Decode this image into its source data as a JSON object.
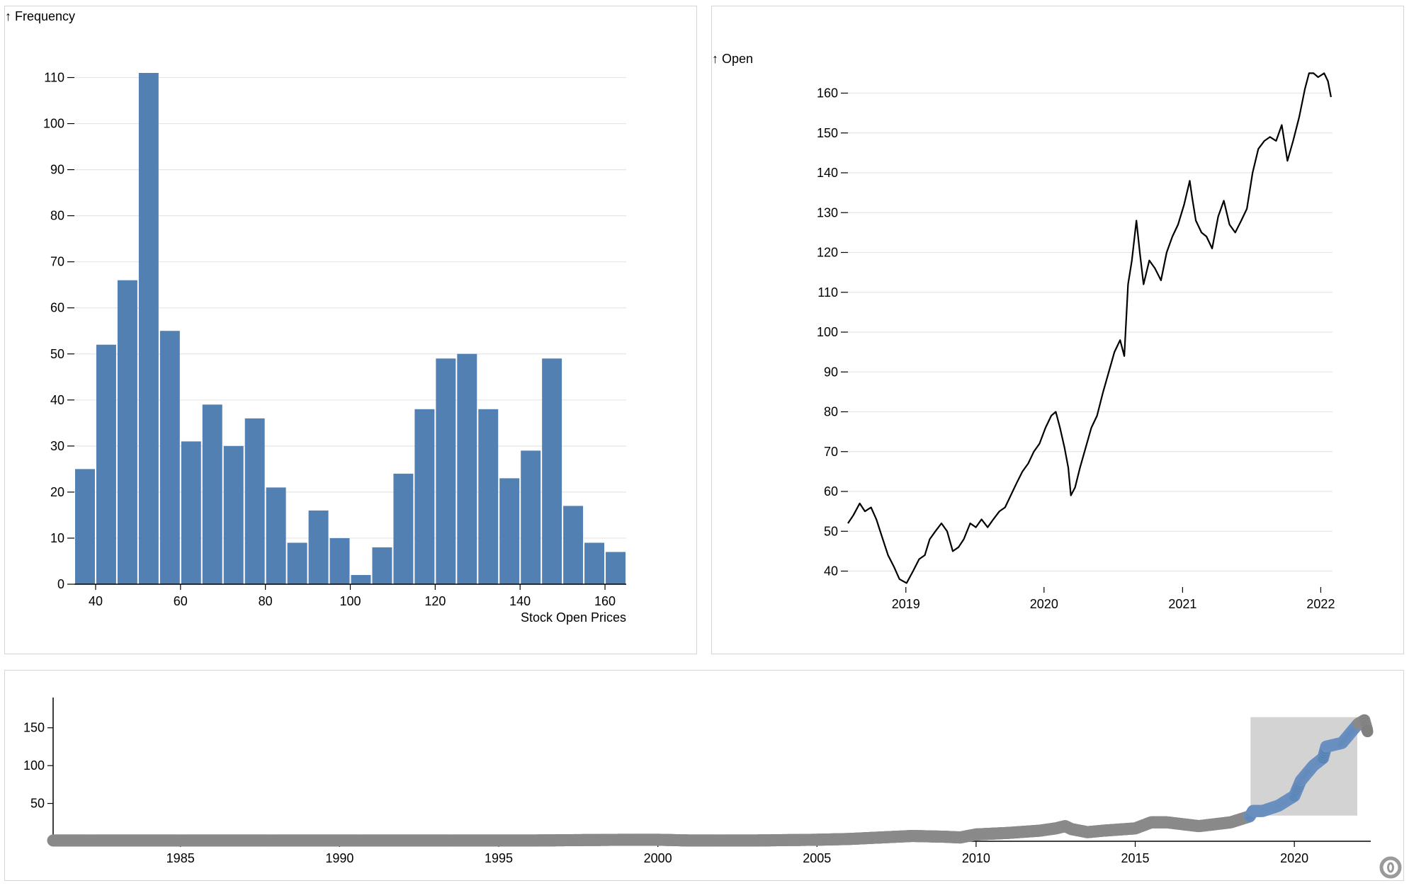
{
  "colors": {
    "bar": "#5380b2",
    "line": "#000000",
    "overview_point": "#808080",
    "overview_selected_point": "#5380b2",
    "brush": "#d3d3d3",
    "gridline": "#e6e6e6"
  },
  "chart_data": [
    {
      "type": "bar",
      "ylabel": "↑ Frequency",
      "xlabel": "Stock Open Prices",
      "bin_width": 5,
      "bin_starts": [
        35,
        40,
        45,
        50,
        55,
        60,
        65,
        70,
        75,
        80,
        85,
        90,
        95,
        100,
        105,
        110,
        115,
        120,
        125,
        130,
        135,
        140,
        145,
        150,
        155,
        160
      ],
      "values": [
        25,
        52,
        66,
        111,
        55,
        31,
        39,
        30,
        36,
        21,
        9,
        16,
        10,
        2,
        8,
        24,
        38,
        49,
        50,
        38,
        23,
        29,
        49,
        17,
        9,
        7
      ],
      "x_ticks": [
        40,
        60,
        80,
        100,
        120,
        140,
        160
      ],
      "y_ticks": [
        0,
        10,
        20,
        30,
        40,
        50,
        60,
        70,
        80,
        90,
        100,
        110
      ],
      "xlim": [
        35,
        165
      ],
      "ylim": [
        0,
        111
      ],
      "grid": true
    },
    {
      "type": "line",
      "ylabel": "↑ Open",
      "x_ticks": [
        "2019",
        "2020",
        "2021",
        "2022"
      ],
      "y_ticks": [
        40,
        50,
        60,
        70,
        80,
        90,
        100,
        110,
        120,
        130,
        140,
        150,
        160
      ],
      "xlim": [
        "2018-08-01",
        "2022-02-01"
      ],
      "ylim": [
        36,
        164
      ],
      "grid": true,
      "x": [
        "2018-08-01",
        "2018-08-15",
        "2018-09-01",
        "2018-09-15",
        "2018-10-01",
        "2018-10-15",
        "2018-11-01",
        "2018-11-15",
        "2018-12-01",
        "2018-12-15",
        "2019-01-03",
        "2019-01-20",
        "2019-02-05",
        "2019-02-20",
        "2019-03-05",
        "2019-03-20",
        "2019-04-05",
        "2019-04-20",
        "2019-05-05",
        "2019-05-20",
        "2019-06-03",
        "2019-06-20",
        "2019-07-05",
        "2019-07-20",
        "2019-08-05",
        "2019-08-20",
        "2019-09-05",
        "2019-09-20",
        "2019-10-05",
        "2019-10-20",
        "2019-11-05",
        "2019-11-20",
        "2019-12-05",
        "2019-12-20",
        "2020-01-05",
        "2020-01-20",
        "2020-02-01",
        "2020-02-12",
        "2020-02-24",
        "2020-03-05",
        "2020-03-12",
        "2020-03-23",
        "2020-04-05",
        "2020-04-20",
        "2020-05-05",
        "2020-05-20",
        "2020-06-05",
        "2020-06-20",
        "2020-07-05",
        "2020-07-20",
        "2020-07-31",
        "2020-08-10",
        "2020-08-20",
        "2020-09-01",
        "2020-09-10",
        "2020-09-20",
        "2020-10-05",
        "2020-10-20",
        "2020-11-05",
        "2020-11-20",
        "2020-12-05",
        "2020-12-20",
        "2021-01-05",
        "2021-01-20",
        "2021-01-26",
        "2021-02-05",
        "2021-02-20",
        "2021-03-05",
        "2021-03-20",
        "2021-04-05",
        "2021-04-20",
        "2021-05-05",
        "2021-05-20",
        "2021-06-05",
        "2021-06-20",
        "2021-07-05",
        "2021-07-20",
        "2021-08-05",
        "2021-08-20",
        "2021-09-05",
        "2021-09-20",
        "2021-10-05",
        "2021-10-20",
        "2021-11-05",
        "2021-11-20",
        "2021-12-01",
        "2021-12-13",
        "2021-12-25",
        "2022-01-10",
        "2022-01-20",
        "2022-01-28"
      ],
      "values": [
        52,
        54,
        57,
        55,
        56,
        53,
        48,
        44,
        41,
        38,
        37,
        40,
        43,
        44,
        48,
        50,
        52,
        50,
        45,
        46,
        48,
        52,
        51,
        53,
        51,
        53,
        55,
        56,
        59,
        62,
        65,
        67,
        70,
        72,
        76,
        79,
        80,
        76,
        71,
        66,
        59,
        61,
        66,
        71,
        76,
        79,
        85,
        90,
        95,
        98,
        94,
        112,
        118,
        128,
        120,
        112,
        118,
        116,
        113,
        120,
        124,
        127,
        132,
        138,
        134,
        128,
        125,
        124,
        121,
        129,
        133,
        127,
        125,
        128,
        131,
        140,
        146,
        148,
        149,
        148,
        152,
        143,
        148,
        154,
        161,
        165,
        165,
        164,
        165,
        163,
        159
      ]
    },
    {
      "type": "scatter",
      "x_ticks": [
        "1985",
        "1990",
        "1995",
        "2000",
        "2005",
        "2010",
        "2015",
        "2020"
      ],
      "y_ticks": [
        50,
        100,
        150
      ],
      "xlim": [
        1981,
        2022.4
      ],
      "ylim": [
        0,
        190
      ],
      "brush": {
        "x": [
          2018.6,
          2022.0
        ],
        "y": [
          33,
          165
        ]
      },
      "x": [
        1981,
        1984,
        1987,
        1990,
        1993,
        1996,
        1999,
        2000,
        2001,
        2003,
        2005,
        2006,
        2007,
        2008,
        2009,
        2009.5,
        2010,
        2011,
        2012,
        2012.5,
        2012.8,
        2013,
        2013.5,
        2014,
        2015,
        2015.5,
        2016,
        2017,
        2018,
        2018.6,
        2018.7,
        2019,
        2019.5,
        2020,
        2020.2,
        2020.6,
        2020.9,
        2021,
        2021.5,
        2021.9,
        2022.0,
        2022.2,
        2022.3
      ],
      "values": [
        1,
        1,
        1,
        1,
        1,
        1,
        2,
        2,
        1,
        1,
        2,
        3,
        5,
        7,
        6,
        5,
        9,
        11,
        14,
        17,
        20,
        16,
        12,
        14,
        17,
        25,
        25,
        20,
        25,
        33,
        40,
        40,
        47,
        60,
        80,
        100,
        110,
        125,
        130,
        150,
        155,
        160,
        145
      ]
    }
  ]
}
